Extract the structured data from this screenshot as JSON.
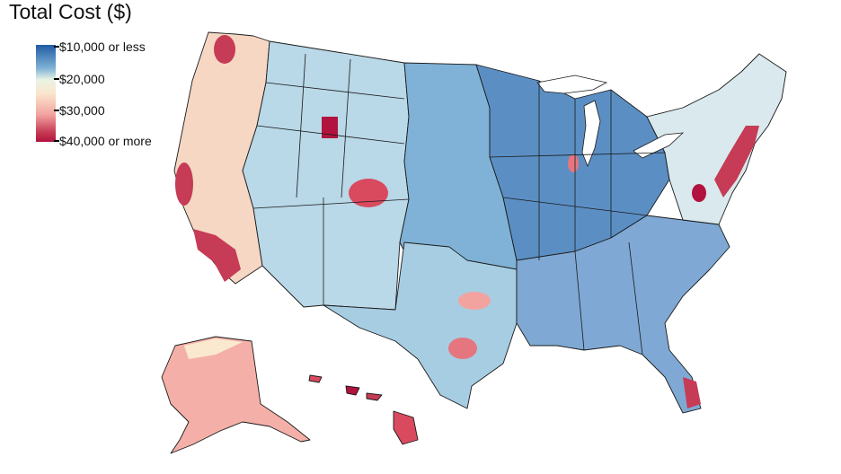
{
  "title": "Total Cost ($)",
  "legend": {
    "labels": [
      "$10,000 or less",
      "$20,000",
      "$30,000",
      "$40,000 or more"
    ],
    "colors": [
      "#1f5ba3",
      "#b9d8e8",
      "#f6b3ad",
      "#b1133e"
    ]
  },
  "colors": {
    "deep_red": "#b1133e",
    "red": "#d94a5f",
    "pink": "#f2a3a0",
    "cream": "#fbf3d8",
    "light_blue": "#b9d8e8",
    "mid_blue": "#7fb2d6",
    "blue": "#5b8fc4"
  }
}
